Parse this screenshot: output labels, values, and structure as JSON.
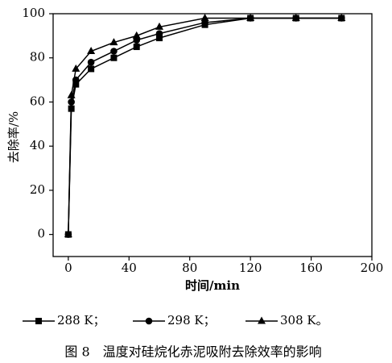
{
  "chart_data": {
    "type": "line",
    "y_label": "去除率/%",
    "x_label": "时间/min",
    "caption": "图 8　温度对硅烷化赤泥吸附去除效率的影响",
    "x": [
      0,
      2,
      5,
      15,
      30,
      45,
      60,
      90,
      120,
      150,
      180
    ],
    "series": [
      {
        "name": "288 K；",
        "color": "#000000",
        "marker": "square",
        "values": [
          0,
          57,
          68,
          75,
          80,
          85,
          89,
          95,
          98,
          98,
          98
        ]
      },
      {
        "name": "298 K；",
        "color": "#000000",
        "marker": "circle",
        "values": [
          0,
          60,
          70,
          78,
          83,
          88,
          91,
          96,
          98,
          98,
          98
        ]
      },
      {
        "name": "308 K。",
        "color": "#000000",
        "marker": "triangle",
        "values": [
          0,
          63,
          75,
          83,
          87,
          90,
          94,
          98,
          98,
          98,
          98
        ]
      }
    ],
    "xlim": [
      -10,
      200
    ],
    "xticks": [
      0,
      40,
      80,
      120,
      160,
      200
    ],
    "ylim": [
      -10,
      100
    ],
    "yticks": [
      0,
      20,
      40,
      60,
      80,
      100
    ]
  }
}
